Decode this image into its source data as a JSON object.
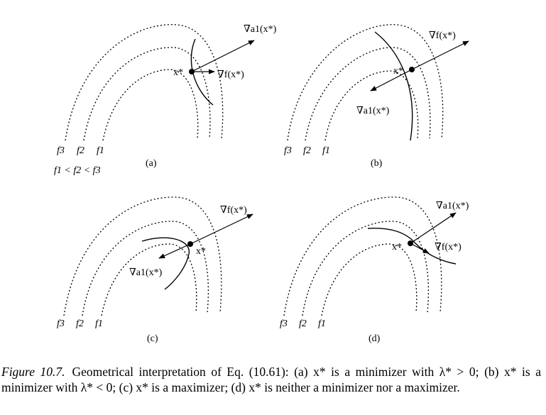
{
  "panels": [
    {
      "id": "a",
      "sublabel": "(a)",
      "contour_labels": [
        "f3",
        "f2",
        "f1"
      ],
      "order_relation": "f1 < f2 < f3",
      "point_label": "x*",
      "vector_up": "∇a1(x*)",
      "vector_down": "∇f(x*)"
    },
    {
      "id": "b",
      "sublabel": "(b)",
      "contour_labels": [
        "f3",
        "f2",
        "f1"
      ],
      "point_label": "x*",
      "vector_up": "∇f(x*)",
      "vector_down": "∇a1(x*)"
    },
    {
      "id": "c",
      "sublabel": "(c)",
      "contour_labels": [
        "f3",
        "f2",
        "f1"
      ],
      "point_label": "x*",
      "vector_up": "∇f(x*)",
      "vector_down": "∇a1(x*)"
    },
    {
      "id": "d",
      "sublabel": "(d)",
      "contour_labels": [
        "f3",
        "f2",
        "f1"
      ],
      "point_label": "x*",
      "vector_up": "∇a1(x*)",
      "vector_down": "∇f(x*)"
    }
  ],
  "caption": {
    "label": "Figure 10.7.",
    "text": "Geometrical interpretation of Eq. (10.61): (a) x* is a minimizer with λ* > 0; (b) x* is a minimizer with λ* < 0; (c) x* is a maximizer; (d) x* is neither a minimizer nor a maximizer."
  }
}
